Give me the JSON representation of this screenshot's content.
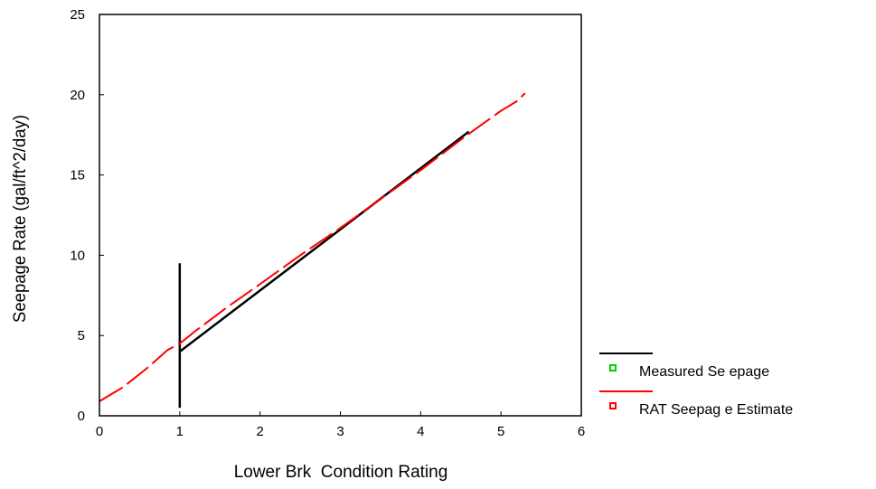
{
  "chart_data": {
    "type": "line",
    "xlabel": "Lower Brk  Condition Rating",
    "ylabel": "Seepage Rate (gal/ft^2/day)",
    "xlim": [
      0,
      6
    ],
    "ylim": [
      0,
      25
    ],
    "xticks": [
      0,
      1,
      2,
      3,
      4,
      5,
      6
    ],
    "yticks": [
      0,
      5,
      10,
      15,
      20,
      25
    ],
    "grid": false,
    "legend_position": "right",
    "colors": {
      "measured_line": "#000000",
      "measured_marker": "#00cc00",
      "estimate_line": "#ff0000",
      "estimate_marker": "#ff0000"
    },
    "legend": {
      "entries": [
        "Measured Se epage",
        "RAT Seepag e Estimate"
      ]
    },
    "series": [
      {
        "name": "Measured Se epage",
        "style": "solid",
        "segments": [
          {
            "x": [
              1.0,
              1.0
            ],
            "y": [
              0.5,
              9.5
            ]
          },
          {
            "x": [
              1.0,
              4.6
            ],
            "y": [
              4.0,
              17.7
            ]
          }
        ]
      },
      {
        "name": "RAT Seepag e Estimate",
        "style": "dashed",
        "x": [
          0.0,
          0.3,
          0.6,
          0.85,
          1.0,
          1.2,
          1.6,
          2.0,
          2.5,
          3.0,
          3.5,
          4.0,
          4.5,
          5.0,
          5.2,
          5.3
        ],
        "y": [
          0.9,
          1.8,
          3.0,
          4.1,
          4.5,
          5.3,
          6.8,
          8.2,
          10.0,
          11.7,
          13.5,
          15.3,
          17.2,
          19.0,
          19.6,
          20.1
        ]
      }
    ]
  }
}
